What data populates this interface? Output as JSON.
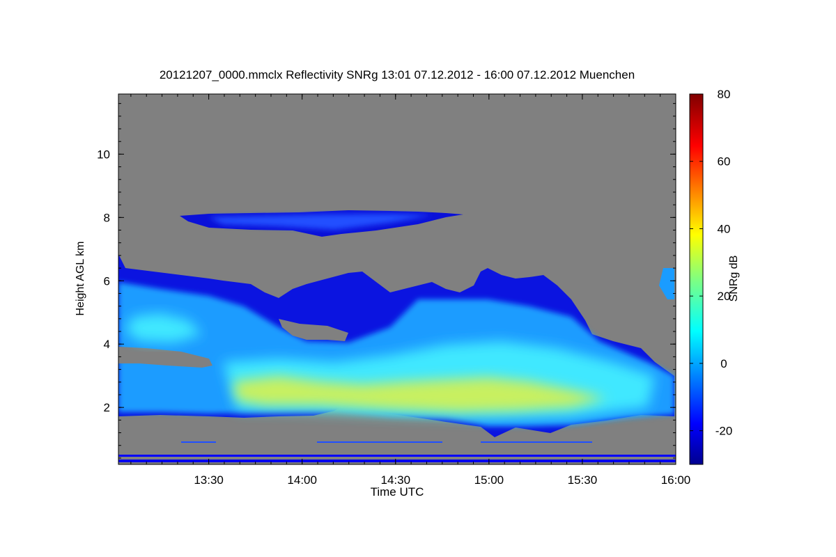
{
  "chart_data": {
    "type": "heatmap",
    "title": "20121207_0000.mmclx Reflectivity SNRg   13:01 07.12.2012 - 16:00 07.12.2012 Muenchen",
    "xlabel": "Time UTC",
    "ylabel": "Height AGL km",
    "x_range": [
      "13:01",
      "16:00"
    ],
    "x_ticks": [
      "13:30",
      "14:00",
      "14:30",
      "15:00",
      "15:30",
      "16:00"
    ],
    "y_range": [
      0.2,
      11.9
    ],
    "y_ticks": [
      2,
      4,
      6,
      8,
      10
    ],
    "background_color": "#808080",
    "colorbar": {
      "label": "SNRg dB",
      "range": [
        -30,
        80
      ],
      "ticks": [
        -20,
        0,
        20,
        40,
        60,
        80
      ],
      "colormap": "jet"
    },
    "features": [
      {
        "kind": "layer",
        "t_start": "13:27",
        "t_end": "14:48",
        "base_km": 7.5,
        "top_km": 8.2,
        "snr_db": -15
      },
      {
        "kind": "layer",
        "t_start": "13:01",
        "t_end": "15:30",
        "base_km": 1.8,
        "top_km": 6.4,
        "snr_db": 5
      },
      {
        "kind": "core",
        "t_start": "13:37",
        "t_end": "15:45",
        "base_km": 2.0,
        "top_km": 3.0,
        "snr_db": 30
      },
      {
        "kind": "layer",
        "t_start": "13:01",
        "t_end": "16:00",
        "base_km": 1.6,
        "top_km": 3.6,
        "snr_db": 10
      }
    ]
  }
}
